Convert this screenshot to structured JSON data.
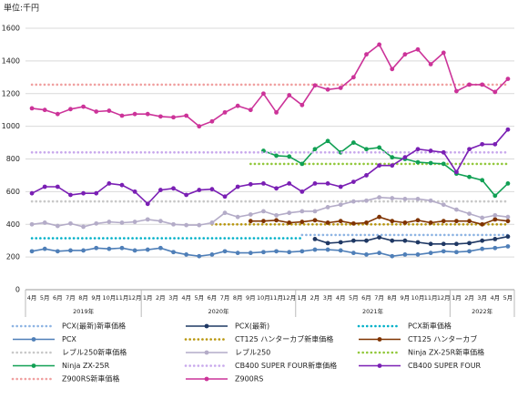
{
  "chart_data": {
    "type": "line",
    "ylabel": "単位:千円",
    "categories": [
      "4月",
      "5月",
      "6月",
      "7月",
      "8月",
      "9月",
      "10月",
      "11月",
      "12月",
      "1月",
      "2月",
      "3月",
      "4月",
      "5月",
      "6月",
      "7月",
      "8月",
      "9月",
      "10月",
      "11月",
      "12月",
      "1月",
      "2月",
      "3月",
      "4月",
      "5月",
      "6月",
      "7月",
      "8月",
      "9月",
      "10月",
      "11月",
      "12月",
      "1月",
      "2月",
      "3月",
      "4月",
      "5月"
    ],
    "years": [
      "2019年",
      "2020年",
      "2021年",
      "2022年"
    ],
    "ylim": [
      0,
      1600
    ],
    "yticks": [
      0,
      200,
      400,
      600,
      800,
      1000,
      1200,
      1400,
      1600
    ],
    "grid": true,
    "series": [
      {
        "name": "PCX(最新)新車価格",
        "color": "#8eb4e3",
        "style": "dotted",
        "values": [
          null,
          null,
          null,
          null,
          null,
          null,
          null,
          null,
          null,
          null,
          null,
          null,
          null,
          null,
          null,
          null,
          null,
          null,
          null,
          null,
          null,
          335,
          335,
          335,
          335,
          335,
          335,
          335,
          335,
          335,
          335,
          335,
          335,
          335,
          335,
          335,
          335,
          335
        ]
      },
      {
        "name": "PCX(最新)",
        "color": "#1f3864",
        "style": "solid",
        "values": [
          null,
          null,
          null,
          null,
          null,
          null,
          null,
          null,
          null,
          null,
          null,
          null,
          null,
          null,
          null,
          null,
          null,
          null,
          null,
          null,
          null,
          null,
          310,
          285,
          290,
          300,
          300,
          320,
          300,
          300,
          290,
          280,
          280,
          280,
          285,
          300,
          310,
          325
        ]
      },
      {
        "name": "PCX新車価格",
        "color": "#00b0c8",
        "style": "dotted",
        "values": [
          315,
          315,
          315,
          315,
          315,
          315,
          315,
          315,
          315,
          315,
          315,
          315,
          315,
          315,
          315,
          315,
          315,
          315,
          315,
          315,
          315,
          315,
          null,
          null,
          null,
          null,
          null,
          null,
          null,
          null,
          null,
          null,
          null,
          null,
          null,
          null,
          null,
          null
        ]
      },
      {
        "name": "PCX",
        "color": "#4f7fb8",
        "style": "solid",
        "values": [
          235,
          250,
          235,
          240,
          240,
          255,
          250,
          255,
          240,
          245,
          255,
          230,
          215,
          205,
          215,
          235,
          225,
          225,
          230,
          235,
          230,
          235,
          245,
          245,
          240,
          225,
          215,
          225,
          205,
          215,
          215,
          225,
          235,
          230,
          235,
          250,
          255,
          265
        ]
      },
      {
        "name": "CT125 ハンターカブ新車価格",
        "color": "#b8960c",
        "style": "dotted",
        "values": [
          null,
          null,
          null,
          null,
          null,
          null,
          null,
          null,
          null,
          null,
          null,
          null,
          null,
          null,
          400,
          400,
          400,
          400,
          400,
          400,
          400,
          400,
          400,
          400,
          400,
          400,
          400,
          400,
          400,
          400,
          400,
          400,
          400,
          400,
          400,
          400,
          400,
          400
        ]
      },
      {
        "name": "CT125 ハンターカブ",
        "color": "#7f3300",
        "style": "solid",
        "values": [
          null,
          null,
          null,
          null,
          null,
          null,
          null,
          null,
          null,
          null,
          null,
          null,
          null,
          null,
          null,
          null,
          null,
          420,
          420,
          425,
          410,
          415,
          425,
          410,
          420,
          405,
          410,
          445,
          420,
          410,
          425,
          410,
          420,
          420,
          420,
          400,
          430,
          420
        ]
      },
      {
        "name": "レブル250新車価格",
        "color": "#c8c8c8",
        "style": "dotted",
        "values": [
          540,
          540,
          540,
          540,
          540,
          540,
          540,
          540,
          540,
          540,
          540,
          540,
          540,
          540,
          540,
          540,
          540,
          540,
          540,
          540,
          540,
          540,
          540,
          540,
          540,
          540,
          540,
          540,
          540,
          540,
          540,
          540,
          540,
          540,
          540,
          540,
          540,
          540
        ]
      },
      {
        "name": "レブル250",
        "color": "#b4acc8",
        "style": "solid",
        "values": [
          400,
          410,
          390,
          405,
          385,
          405,
          415,
          410,
          415,
          430,
          420,
          400,
          395,
          395,
          410,
          470,
          445,
          460,
          480,
          455,
          470,
          480,
          480,
          505,
          520,
          540,
          545,
          565,
          560,
          555,
          555,
          545,
          520,
          490,
          465,
          440,
          455,
          445
        ]
      },
      {
        "name": "Ninja ZX-25R新車価格",
        "color": "#92c83c",
        "style": "dotted",
        "values": [
          null,
          null,
          null,
          null,
          null,
          null,
          null,
          null,
          null,
          null,
          null,
          null,
          null,
          null,
          null,
          null,
          null,
          770,
          770,
          770,
          770,
          770,
          770,
          770,
          770,
          770,
          770,
          770,
          770,
          770,
          770,
          770,
          770,
          770,
          770,
          770,
          770,
          770
        ]
      },
      {
        "name": "Ninja ZX-25R",
        "color": "#11a054",
        "style": "solid",
        "values": [
          null,
          null,
          null,
          null,
          null,
          null,
          null,
          null,
          null,
          null,
          null,
          null,
          null,
          null,
          null,
          null,
          null,
          null,
          850,
          820,
          815,
          770,
          860,
          910,
          840,
          900,
          860,
          870,
          810,
          800,
          780,
          775,
          770,
          710,
          690,
          670,
          575,
          650
        ]
      },
      {
        "name": "CB400 SUPER FOUR新車価格",
        "color": "#c8a8ec",
        "style": "dotted",
        "values": [
          840,
          840,
          840,
          840,
          840,
          840,
          840,
          840,
          840,
          840,
          840,
          840,
          840,
          840,
          840,
          840,
          840,
          840,
          840,
          840,
          840,
          840,
          840,
          840,
          840,
          840,
          840,
          840,
          840,
          840,
          840,
          840,
          840,
          840,
          840,
          840,
          840,
          840
        ]
      },
      {
        "name": "CB400 SUPER FOUR",
        "color": "#7a1fb4",
        "style": "solid",
        "values": [
          590,
          630,
          630,
          580,
          590,
          590,
          650,
          640,
          600,
          525,
          610,
          620,
          580,
          610,
          615,
          570,
          630,
          645,
          650,
          620,
          650,
          600,
          650,
          650,
          630,
          660,
          700,
          760,
          760,
          810,
          860,
          850,
          840,
          720,
          860,
          890,
          890,
          980
        ]
      },
      {
        "name": "Z900RS新車価格",
        "color": "#f0a0a0",
        "style": "dotted",
        "values": [
          1255,
          1255,
          1255,
          1255,
          1255,
          1255,
          1255,
          1255,
          1255,
          1255,
          1255,
          1255,
          1255,
          1255,
          1255,
          1255,
          1255,
          1255,
          1255,
          1255,
          1255,
          1255,
          1255,
          1255,
          1255,
          1255,
          1255,
          1255,
          1255,
          1255,
          1255,
          1255,
          1255,
          1255,
          1255,
          1255,
          1255,
          1255
        ]
      },
      {
        "name": "Z900RS",
        "color": "#cc3399",
        "style": "solid",
        "values": [
          1110,
          1100,
          1075,
          1105,
          1120,
          1090,
          1095,
          1065,
          1075,
          1075,
          1060,
          1055,
          1065,
          1000,
          1030,
          1085,
          1125,
          1100,
          1200,
          1085,
          1190,
          1130,
          1250,
          1225,
          1235,
          1300,
          1440,
          1500,
          1350,
          1440,
          1470,
          1380,
          1450,
          1215,
          1255,
          1255,
          1210,
          1290
        ]
      }
    ]
  }
}
